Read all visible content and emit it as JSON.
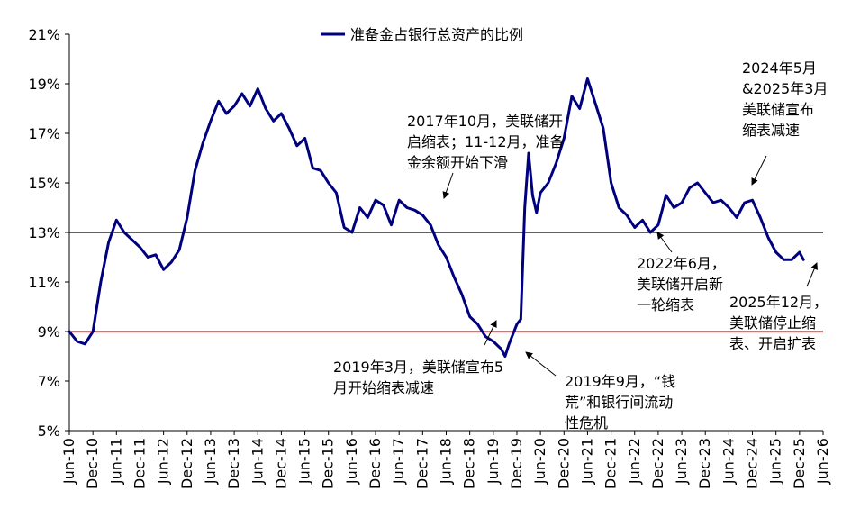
{
  "chart_data": {
    "type": "line",
    "legend": {
      "label": "准备金占银行总资产的比例",
      "placement": "top-center"
    },
    "series": [
      {
        "name": "准备金占银行总资产的比例",
        "color": "#00007f",
        "x": [
          "2010-06",
          "2010-08",
          "2010-10",
          "2010-12",
          "2011-02",
          "2011-04",
          "2011-06",
          "2011-08",
          "2011-10",
          "2011-12",
          "2012-02",
          "2012-04",
          "2012-06",
          "2012-08",
          "2012-10",
          "2012-12",
          "2013-02",
          "2013-04",
          "2013-06",
          "2013-08",
          "2013-10",
          "2013-12",
          "2014-02",
          "2014-04",
          "2014-06",
          "2014-08",
          "2014-10",
          "2014-12",
          "2015-02",
          "2015-04",
          "2015-06",
          "2015-08",
          "2015-10",
          "2015-12",
          "2016-02",
          "2016-04",
          "2016-06",
          "2016-08",
          "2016-10",
          "2016-12",
          "2017-02",
          "2017-04",
          "2017-06",
          "2017-08",
          "2017-10",
          "2017-12",
          "2018-02",
          "2018-04",
          "2018-06",
          "2018-08",
          "2018-10",
          "2018-12",
          "2019-02",
          "2019-04",
          "2019-06",
          "2019-08",
          "2019-09",
          "2019-10",
          "2019-12",
          "2020-01",
          "2020-02",
          "2020-03",
          "2020-04",
          "2020-05",
          "2020-06",
          "2020-08",
          "2020-10",
          "2020-12",
          "2021-02",
          "2021-04",
          "2021-06",
          "2021-08",
          "2021-10",
          "2021-12",
          "2022-02",
          "2022-04",
          "2022-06",
          "2022-08",
          "2022-10",
          "2022-12",
          "2023-02",
          "2023-04",
          "2023-06",
          "2023-08",
          "2023-10",
          "2023-12",
          "2024-02",
          "2024-04",
          "2024-06",
          "2024-08",
          "2024-10",
          "2024-12",
          "2025-02",
          "2025-04",
          "2025-06",
          "2025-08",
          "2025-10",
          "2025-12",
          "2026-01"
        ],
        "values": [
          9.0,
          8.6,
          8.5,
          9.0,
          11.0,
          12.6,
          13.5,
          13.0,
          12.7,
          12.4,
          12.0,
          12.1,
          11.5,
          11.8,
          12.3,
          13.6,
          15.5,
          16.6,
          17.5,
          18.3,
          17.8,
          18.1,
          18.6,
          18.1,
          18.8,
          18.0,
          17.5,
          17.8,
          17.2,
          16.5,
          16.8,
          15.6,
          15.5,
          15.0,
          14.6,
          13.2,
          13.0,
          14.0,
          13.6,
          14.3,
          14.1,
          13.3,
          14.3,
          14.0,
          13.9,
          13.7,
          13.3,
          12.5,
          12.0,
          11.2,
          10.5,
          9.6,
          9.3,
          8.8,
          8.6,
          8.3,
          8.0,
          8.5,
          9.3,
          9.5,
          14.0,
          16.2,
          14.5,
          13.8,
          14.6,
          15.0,
          15.8,
          16.8,
          18.5,
          18.0,
          19.2,
          18.2,
          17.2,
          15.0,
          14.0,
          13.7,
          13.2,
          13.5,
          13.0,
          13.3,
          14.5,
          14.0,
          14.2,
          14.8,
          15.0,
          14.6,
          14.2,
          14.3,
          14.0,
          13.6,
          14.2,
          14.3,
          13.6,
          12.8,
          12.2,
          11.9,
          11.9,
          12.2,
          11.9
        ]
      }
    ],
    "x_tick_labels": [
      "Jun-10",
      "Dec-10",
      "Jun-11",
      "Dec-11",
      "Jun-12",
      "Dec-12",
      "Jun-13",
      "Dec-13",
      "Jun-14",
      "Dec-14",
      "Jun-15",
      "Dec-15",
      "Jun-16",
      "Dec-16",
      "Jun-17",
      "Dec-17",
      "Jun-18",
      "Dec-18",
      "Jun-19",
      "Dec-19",
      "Jun-20",
      "Dec-20",
      "Jun-21",
      "Dec-21",
      "Jun-22",
      "Dec-22",
      "Jun-23",
      "Dec-23",
      "Jun-24",
      "Dec-24",
      "Jun-25",
      "Dec-25",
      "Jun-26"
    ],
    "x_range": [
      "2010-06",
      "2026-06"
    ],
    "y_ticks": [
      5,
      7,
      9,
      11,
      13,
      15,
      17,
      19,
      21
    ],
    "y_tick_suffix": "%",
    "ylim": [
      5,
      21
    ],
    "reference_lines": [
      {
        "value": 9,
        "color": "#ff0000"
      },
      {
        "value": 13,
        "color": "#000000"
      }
    ],
    "grid": false,
    "annotations": [
      {
        "lines": [
          "2017年10月，美联储开",
          "启缩表；11-12月，准备",
          "金余额开始下滑"
        ],
        "target": [
          "2017-12",
          14.0
        ]
      },
      {
        "lines": [
          "2019年3月，美联储宣布5",
          "月开始缩表减速"
        ],
        "target": [
          "2019-05",
          9.3
        ]
      },
      {
        "lines": [
          "2019年9月，“钱",
          "荒”和银行间流动",
          "性危机"
        ],
        "target": [
          "2019-09",
          8.5
        ]
      },
      {
        "lines": [
          "2022年6月，",
          "美联储开启新",
          "一轮缩表"
        ],
        "target": [
          "2022-06",
          12.9
        ]
      },
      {
        "lines": [
          "2024年5月",
          "&2025年3月",
          "美联储宣布",
          "缩表减速"
        ],
        "target": [
          "2024-05",
          15.0
        ]
      },
      {
        "lines": [
          "2025年12月，",
          "美联储停止缩",
          "表、开启扩表"
        ],
        "target": [
          "2025-12",
          11.6
        ]
      }
    ]
  }
}
